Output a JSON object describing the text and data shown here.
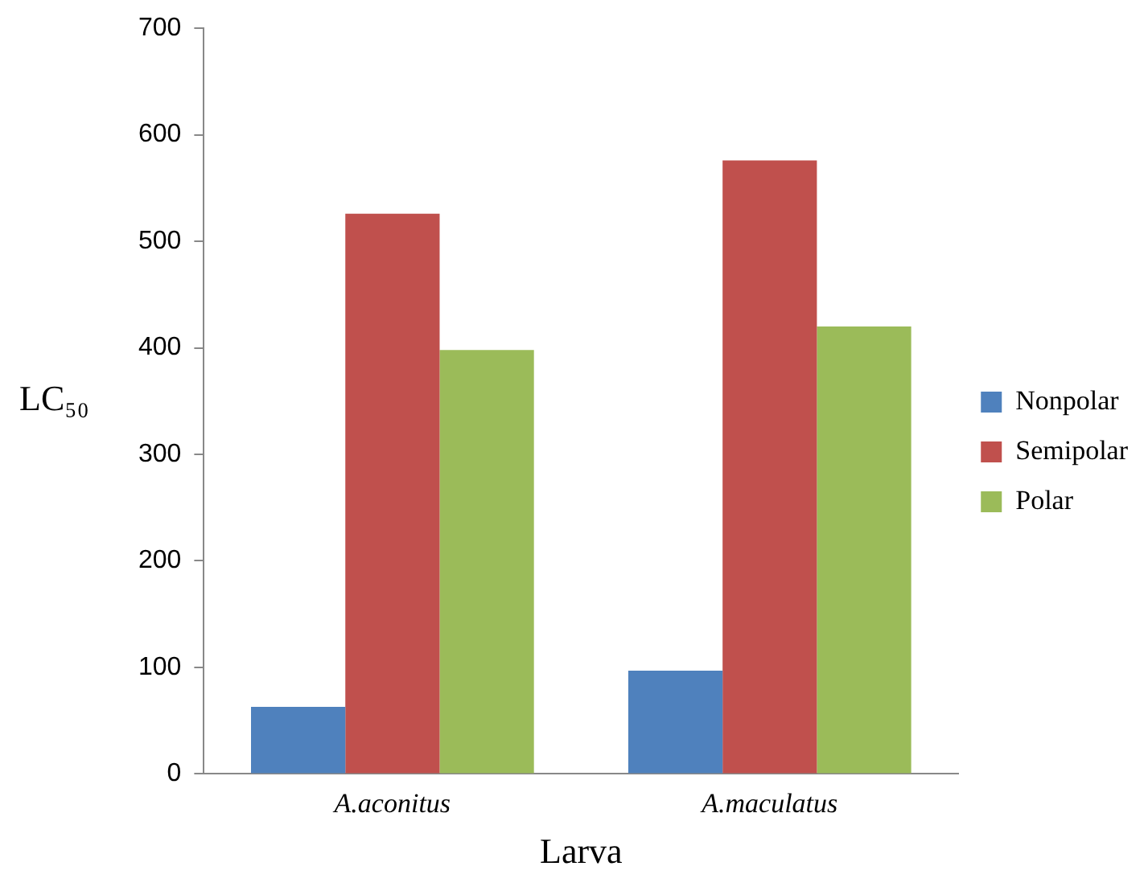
{
  "chart_data": {
    "type": "bar",
    "xlabel": "Larva",
    "ylabel": "LC₅₀",
    "categories": [
      "A.aconitus",
      "A.maculatus"
    ],
    "series": [
      {
        "name": "Nonpolar",
        "color": "#4f81bd",
        "values": [
          63,
          97
        ]
      },
      {
        "name": "Semipolar",
        "color": "#c0504d",
        "values": [
          526,
          576
        ]
      },
      {
        "name": "Polar",
        "color": "#9bbb59",
        "values": [
          398,
          420
        ]
      }
    ],
    "ylim": [
      0,
      700
    ],
    "yticks": [
      0,
      100,
      200,
      300,
      400,
      500,
      600,
      700
    ],
    "grid": false,
    "legend": "right"
  }
}
